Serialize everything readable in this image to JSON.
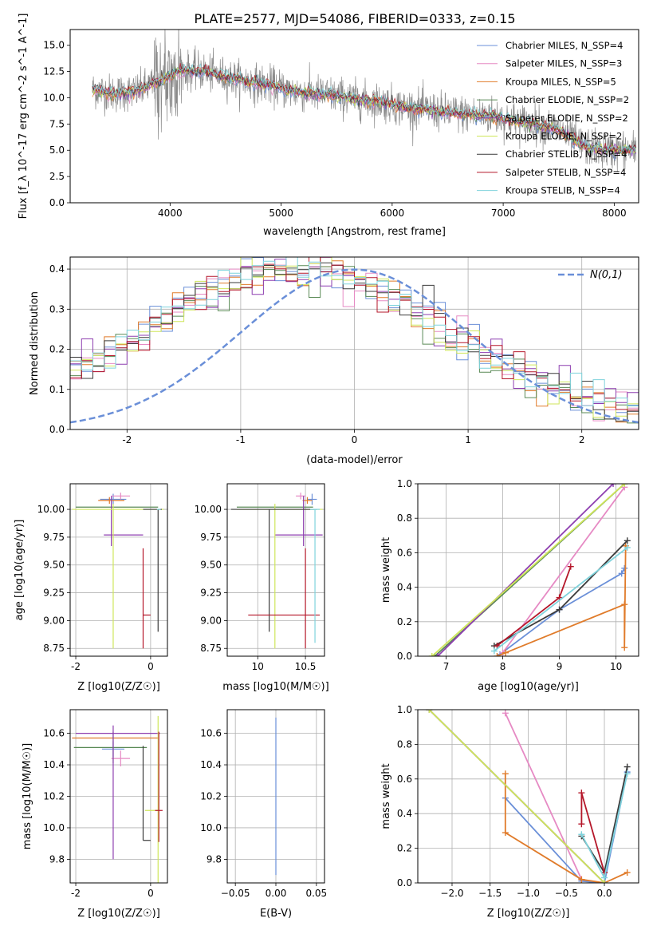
{
  "figure": {
    "title": "PLATE=2577, MJD=54086, FIBERID=0333, z=0.15"
  },
  "colors": [
    "#6a8fd8",
    "#e68ac4",
    "#e07b2a",
    "#5a8a56",
    "#8e3fb0",
    "#f0a04b",
    "#3b3b3b",
    "#b5172a",
    "#7fd3dc"
  ],
  "legend_entries": [
    "Chabrier MILES, N_SSP=4",
    "Salpeter MILES, N_SSP=3",
    "Kroupa MILES, N_SSP=5",
    "Chabrier ELODIE, N_SSP=2",
    "Salpeter ELODIE, N_SSP=2",
    "Kroupa ELODIE, N_SSP=2",
    "Chabrier STELIB, N_SSP=4",
    "Salpeter STELIB, N_SSP=4",
    "Kroupa STELIB, N_SSP=4"
  ],
  "chart_data": [
    {
      "id": "spectrum",
      "type": "line",
      "xlabel": "wavelength [Angstrom, rest frame]",
      "ylabel": "Flux [f_λ 10^-17 erg cm^-2 s^-1 A^-1]",
      "xlim": [
        3100,
        8220
      ],
      "ylim": [
        0,
        16.5
      ],
      "xticks": [
        4000,
        5000,
        6000,
        7000,
        8000
      ],
      "yticks": [
        0,
        2.5,
        5,
        7.5,
        10,
        12.5,
        15
      ],
      "yticklabels": [
        "0.0",
        "2.5",
        "5.0",
        "7.5",
        "10.0",
        "12.5",
        "15.0"
      ],
      "grid": false,
      "legend": "upper right",
      "model_anchors": {
        "x": [
          3300,
          3500,
          3700,
          3900,
          4100,
          4300,
          4500,
          4700,
          4900,
          5100,
          5300,
          5500,
          5700,
          5900,
          6100,
          6300,
          6500,
          6700,
          6900,
          7100,
          7300,
          7500,
          7700,
          7900
        ],
        "y": [
          10.8,
          10.4,
          10.6,
          11.5,
          12.6,
          12.5,
          12.0,
          11.5,
          11.2,
          10.6,
          10.4,
          10.2,
          9.8,
          9.6,
          9.1,
          8.9,
          8.6,
          8.4,
          8.3,
          7.8,
          7.5,
          6.9,
          5.5,
          5.0
        ]
      },
      "xrange_data": [
        3300,
        8200
      ]
    },
    {
      "id": "residuals",
      "type": "histogram",
      "xlabel": "(data-model)/error",
      "ylabel": "Normed distribution",
      "xlim": [
        -2.5,
        2.5
      ],
      "ylim": [
        0,
        0.43
      ],
      "xticks": [
        -2,
        -1,
        0,
        1,
        2
      ],
      "yticks": [
        0,
        0.1,
        0.2,
        0.3,
        0.4
      ],
      "yticklabels": [
        "0.0",
        "0.1",
        "0.2",
        "0.3",
        "0.4"
      ],
      "grid": true,
      "legend": "upper right",
      "legend_label": "N(0,1)",
      "bin_width": 0.1,
      "reference_curve": "normal(0,1)"
    },
    {
      "id": "age_vs_Z",
      "type": "errorbar",
      "xlabel": "Z [log10(Z/Z☉)]",
      "ylabel": "age  [log10(age/yr)]",
      "xlim": [
        -2.15,
        0.45
      ],
      "ylim": [
        8.68,
        10.23
      ],
      "xticks": [
        -2,
        0
      ],
      "yticks": [
        8.75,
        9.0,
        9.25,
        9.5,
        9.75,
        10.0
      ],
      "yticklabels": [
        "8.75",
        "9.00",
        "9.25",
        "9.50",
        "9.75",
        "10.00"
      ],
      "grid": true,
      "points": [
        {
          "x": -1.0,
          "y": 10.09,
          "xerr": [
            0.35,
            0.35
          ],
          "yerr": [
            0.05,
            0.05
          ]
        },
        {
          "x": -0.8,
          "y": 10.12,
          "xerr": [
            0.25,
            0.25
          ],
          "yerr": [
            0.03,
            0.03
          ]
        },
        {
          "x": -1.1,
          "y": 10.08,
          "xerr": [
            0.3,
            0.4
          ],
          "yerr": [
            0.03,
            0.03
          ]
        },
        {
          "x": -1.0,
          "y": 10.02,
          "xerr": [
            1.0,
            1.2
          ],
          "yerr": [
            0.0,
            0.0
          ]
        },
        {
          "x": -1.05,
          "y": 9.77,
          "xerr": [
            0.2,
            0.85
          ],
          "yerr": [
            0.1,
            0.35
          ]
        },
        {
          "x": -1.0,
          "y": 10.0,
          "xerr": [
            1.1,
            1.35
          ],
          "yerr": [
            1.25,
            0.05
          ]
        },
        {
          "x": 0.2,
          "y": 10.0,
          "xerr": [
            0.4,
            0.1
          ],
          "yerr": [
            1.1,
            0.0
          ]
        },
        {
          "x": -0.2,
          "y": 9.05,
          "xerr": [
            0.0,
            0.2
          ],
          "yerr": [
            0.3,
            0.6
          ]
        },
        {
          "x": 0.22,
          "y": 10.0,
          "xerr": [
            0.05,
            0.05
          ],
          "yerr": [
            0.0,
            0.0
          ]
        }
      ]
    },
    {
      "id": "age_vs_mass",
      "type": "errorbar",
      "xlabel": "mass [log10(M/M☉)]",
      "ylabel": "",
      "xlim": [
        9.68,
        10.7
      ],
      "ylim": [
        8.68,
        10.23
      ],
      "xticks": [
        10.0,
        10.5
      ],
      "yticks": [
        8.75,
        9.0,
        9.25,
        9.5,
        9.75,
        10.0
      ],
      "yticklabels": [
        "8.75",
        "9.00",
        "9.25",
        "9.50",
        "9.75",
        "10.00"
      ],
      "grid": true,
      "points": [
        {
          "x": 10.57,
          "y": 10.09,
          "xerr": [
            0.05,
            0.05
          ],
          "yerr": [
            0.05,
            0.05
          ]
        },
        {
          "x": 10.45,
          "y": 10.12,
          "xerr": [
            0.05,
            0.05
          ],
          "yerr": [
            0.03,
            0.03
          ]
        },
        {
          "x": 10.52,
          "y": 10.08,
          "xerr": [
            0.05,
            0.05
          ],
          "yerr": [
            0.03,
            0.03
          ]
        },
        {
          "x": 10.18,
          "y": 10.02,
          "xerr": [
            0.4,
            0.4
          ],
          "yerr": [
            0.0,
            0.0
          ]
        },
        {
          "x": 10.48,
          "y": 9.77,
          "xerr": [
            0.3,
            0.2
          ],
          "yerr": [
            0.1,
            0.35
          ]
        },
        {
          "x": 10.18,
          "y": 10.0,
          "xerr": [
            0.4,
            0.5
          ],
          "yerr": [
            1.25,
            0.05
          ]
        },
        {
          "x": 10.12,
          "y": 10.0,
          "xerr": [
            0.4,
            0.5
          ],
          "yerr": [
            1.1,
            0.0
          ]
        },
        {
          "x": 10.5,
          "y": 9.05,
          "xerr": [
            0.6,
            0.15
          ],
          "yerr": [
            0.3,
            0.6
          ]
        },
        {
          "x": 10.6,
          "y": 10.0,
          "xerr": [
            0.05,
            0.05
          ],
          "yerr": [
            1.2,
            0.0
          ]
        }
      ]
    },
    {
      "id": "mass_weight_vs_age",
      "type": "line",
      "xlabel": "age  [log10(age/yr)]",
      "ylabel": "mass weight",
      "xlim": [
        6.5,
        10.4
      ],
      "ylim": [
        0,
        1.0
      ],
      "xticks": [
        7,
        8,
        9,
        10
      ],
      "yticks": [
        0,
        0.2,
        0.4,
        0.6,
        0.8,
        1.0
      ],
      "yticklabels": [
        "0.0",
        "0.2",
        "0.4",
        "0.6",
        "0.8",
        "1.0"
      ],
      "grid": true,
      "series": [
        {
          "color_index": 0,
          "x": [
            7.95,
            9.0,
            10.1,
            10.15
          ],
          "y": [
            0.01,
            0.27,
            0.48,
            0.51
          ]
        },
        {
          "color_index": 1,
          "x": [
            8.0,
            10.15
          ],
          "y": [
            0.02,
            0.98
          ]
        },
        {
          "color_index": 2,
          "x": [
            7.9,
            8.05,
            10.15,
            10.15,
            10.17
          ],
          "y": [
            0.0,
            0.02,
            0.3,
            0.05,
            0.64
          ]
        },
        {
          "color_index": 3,
          "x": [
            6.8,
            10.15
          ],
          "y": [
            0.0,
            1.0
          ]
        },
        {
          "color_index": 4,
          "x": [
            6.85,
            9.95
          ],
          "y": [
            0.0,
            1.0
          ]
        },
        {
          "color_index": 6,
          "x": [
            7.85,
            9.0,
            10.2
          ],
          "y": [
            0.06,
            0.27,
            0.67
          ]
        },
        {
          "color_index": 7,
          "x": [
            7.9,
            9.0,
            9.2
          ],
          "y": [
            0.06,
            0.34,
            0.52
          ]
        },
        {
          "color_index": 8,
          "x": [
            7.85,
            10.2
          ],
          "y": [
            0.03,
            0.63
          ]
        },
        {
          "color_index": 5,
          "x": [
            6.75,
            10.15
          ],
          "y": [
            0.0,
            1.0
          ],
          "stroke": "#cfe65a"
        }
      ]
    },
    {
      "id": "mass_vs_Z",
      "type": "errorbar",
      "xlabel": "Z [log10(Z/Z☉)]",
      "ylabel": "mass [log10(M/M☉)]",
      "xlim": [
        -2.15,
        0.45
      ],
      "ylim": [
        9.65,
        10.75
      ],
      "xticks": [
        -2,
        0
      ],
      "yticks": [
        9.8,
        10.0,
        10.2,
        10.4,
        10.6
      ],
      "yticklabels": [
        "9.8",
        "10.0",
        "10.2",
        "10.4",
        "10.6"
      ],
      "grid": true,
      "points": [
        {
          "x": -1.0,
          "y": 10.5,
          "xerr": [
            0.3,
            0.3
          ],
          "yerr": [
            0.05,
            0.05
          ]
        },
        {
          "x": -0.8,
          "y": 10.44,
          "xerr": [
            0.25,
            0.25
          ],
          "yerr": [
            0.05,
            0.05
          ]
        },
        {
          "x": -1.0,
          "y": 10.57,
          "xerr": [
            1.1,
            1.2
          ],
          "yerr": [
            0.0,
            0.0
          ]
        },
        {
          "x": -1.0,
          "y": 10.51,
          "xerr": [
            1.05,
            0.9
          ],
          "yerr": [
            0.1,
            0.1
          ]
        },
        {
          "x": -1.0,
          "y": 10.6,
          "xerr": [
            1.0,
            1.25
          ],
          "yerr": [
            0.8,
            0.05
          ]
        },
        {
          "x": 0.2,
          "y": 10.11,
          "xerr": [
            0.35,
            0.0
          ],
          "yerr": [
            0.5,
            0.6
          ]
        },
        {
          "x": -0.2,
          "y": 9.92,
          "xerr": [
            0.0,
            0.2
          ],
          "yerr": [
            0.0,
            0.6
          ]
        },
        {
          "x": 0.22,
          "y": 10.11,
          "xerr": [
            0.1,
            0.1
          ],
          "yerr": [
            0.2,
            0.5
          ]
        }
      ]
    },
    {
      "id": "mass_vs_EBV",
      "type": "errorbar",
      "xlabel": "E(B-V)",
      "ylabel": "",
      "xlim": [
        -0.06,
        0.06
      ],
      "ylim": [
        9.65,
        10.75
      ],
      "xticks": [
        -0.05,
        0.0,
        0.05
      ],
      "xticklabels": [
        "−0.05",
        "0.00",
        "0.05"
      ],
      "yticks": [
        9.8,
        10.0,
        10.2,
        10.4,
        10.6
      ],
      "yticklabels": [
        "9.8",
        "10.0",
        "10.2",
        "10.4",
        "10.6"
      ],
      "grid": true,
      "points": [
        {
          "x": 0.0,
          "y": 10.2,
          "xerr": [
            0,
            0
          ],
          "yerr": [
            0.5,
            0.5
          ]
        }
      ]
    },
    {
      "id": "mass_weight_vs_Z",
      "type": "line",
      "xlabel": "Z [log10(Z/Z☉)]",
      "ylabel": "mass weight",
      "xlim": [
        -2.45,
        0.45
      ],
      "ylim": [
        0,
        1.0
      ],
      "xticks": [
        -2.0,
        -1.5,
        -1.0,
        -0.5,
        0.0
      ],
      "xticklabels": [
        "−2.0",
        "−1.5",
        "−1.0",
        "−0.5",
        "0.0"
      ],
      "yticks": [
        0,
        0.2,
        0.4,
        0.6,
        0.8,
        1.0
      ],
      "yticklabels": [
        "0.0",
        "0.2",
        "0.4",
        "0.6",
        "0.8",
        "1.0"
      ],
      "grid": true,
      "series": [
        {
          "color_index": 0,
          "x": [
            -1.3,
            -0.3,
            0.0,
            0.3
          ],
          "y": [
            0.49,
            0.01,
            0.0,
            0.64
          ]
        },
        {
          "color_index": 1,
          "x": [
            -1.3,
            -0.3
          ],
          "y": [
            0.98,
            0.02
          ]
        },
        {
          "color_index": 2,
          "x": [
            -1.3,
            -1.3,
            -0.3,
            0.0,
            0.3
          ],
          "y": [
            0.63,
            0.29,
            0.02,
            0.0,
            0.06
          ]
        },
        {
          "color_index": 3,
          "x": [
            -2.3,
            0.0
          ],
          "y": [
            1.0,
            0.0
          ]
        },
        {
          "color_index": 4,
          "x": [
            -2.3,
            0.0
          ],
          "y": [
            1.0,
            0.0
          ]
        },
        {
          "color_index": 6,
          "x": [
            -0.3,
            0.0,
            0.3
          ],
          "y": [
            0.27,
            0.06,
            0.67
          ]
        },
        {
          "color_index": 7,
          "x": [
            -0.3,
            -0.3,
            0.0
          ],
          "y": [
            0.34,
            0.52,
            0.06
          ]
        },
        {
          "color_index": 8,
          "x": [
            -0.3,
            0.0,
            0.3
          ],
          "y": [
            0.28,
            0.03,
            0.63
          ]
        },
        {
          "color_index": 5,
          "x": [
            -2.3,
            0.0
          ],
          "y": [
            1.0,
            0.0
          ],
          "stroke": "#cfe65a"
        }
      ]
    }
  ]
}
